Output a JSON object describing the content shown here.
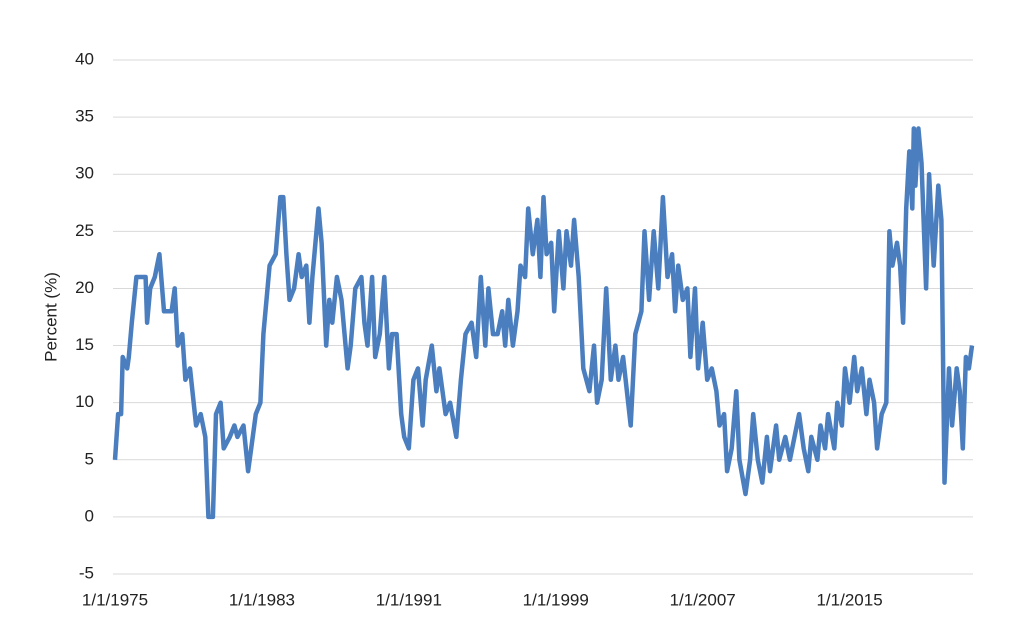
{
  "chart_data": {
    "type": "line",
    "y_label": "Percent (%)",
    "ylim": [
      -5,
      40
    ],
    "yticks": [
      -5,
      0,
      5,
      10,
      15,
      20,
      25,
      30,
      35,
      40
    ],
    "grid": true,
    "xlim": [
      "1/1/1975",
      "9/1/2021"
    ],
    "xticks": [
      "1/1/1975",
      "1/1/1983",
      "1/1/1991",
      "1/1/1999",
      "1/1/2007",
      "1/1/2015"
    ],
    "x": [
      "1/1/1975",
      "3/1/1975",
      "5/1/1975",
      "6/1/1975",
      "9/1/1975",
      "10/1/1975",
      "12/1/1975",
      "3/1/1976",
      "9/1/1976",
      "10/1/1976",
      "12/1/1976",
      "3/1/1977",
      "6/1/1977",
      "9/1/1977",
      "2/1/1978",
      "4/1/1978",
      "6/1/1978",
      "9/1/1978",
      "11/1/1978",
      "2/1/1979",
      "6/1/1979",
      "9/1/1979",
      "12/1/1979",
      "2/1/1980",
      "5/1/1980",
      "7/1/1980",
      "10/1/1980",
      "12/1/1980",
      "4/1/1981",
      "7/1/1981",
      "9/1/1981",
      "1/1/1982",
      "4/1/1982",
      "6/1/1982",
      "9/1/1982",
      "12/1/1982",
      "2/1/1983",
      "6/1/1983",
      "10/1/1983",
      "1/1/1984",
      "3/1/1984",
      "5/1/1984",
      "7/1/1984",
      "10/1/1984",
      "1/1/1985",
      "3/1/1985",
      "6/1/1985",
      "8/1/1985",
      "10/1/1985",
      "2/1/1986",
      "4/1/1986",
      "7/1/1986",
      "9/1/1986",
      "11/1/1986",
      "2/1/1987",
      "5/1/1987",
      "9/1/1987",
      "11/1/1987",
      "2/1/1988",
      "6/1/1988",
      "8/1/1988",
      "10/1/1988",
      "1/1/1989",
      "3/1/1989",
      "6/1/1989",
      "9/1/1989",
      "12/1/1989",
      "2/1/1990",
      "5/1/1990",
      "8/1/1990",
      "10/1/1990",
      "1/1/1991",
      "4/1/1991",
      "7/1/1991",
      "10/1/1991",
      "12/1/1991",
      "4/1/1992",
      "7/1/1992",
      "9/1/1992",
      "1/1/1993",
      "4/1/1993",
      "8/1/1993",
      "11/1/1993",
      "2/1/1994",
      "6/1/1994",
      "9/1/1994",
      "12/1/1994",
      "3/1/1995",
      "5/1/1995",
      "8/1/1995",
      "11/1/1995",
      "2/1/1996",
      "4/1/1996",
      "6/1/1996",
      "9/1/1996",
      "12/1/1996",
      "2/1/1997",
      "5/1/1997",
      "7/1/1997",
      "10/1/1997",
      "1/1/1998",
      "3/1/1998",
      "5/1/1998",
      "7/1/1998",
      "10/1/1998",
      "12/1/1998",
      "3/1/1999",
      "6/1/1999",
      "8/1/1999",
      "11/1/1999",
      "1/1/2000",
      "4/1/2000",
      "7/1/2000",
      "11/1/2000",
      "2/1/2001",
      "4/1/2001",
      "7/1/2001",
      "10/1/2001",
      "1/1/2002",
      "4/1/2002",
      "6/1/2002",
      "9/1/2002",
      "2/1/2003",
      "5/1/2003",
      "9/1/2003",
      "11/1/2003",
      "2/1/2004",
      "5/1/2004",
      "8/1/2004",
      "11/1/2004",
      "2/1/2005",
      "5/1/2005",
      "7/1/2005",
      "9/1/2005",
      "12/1/2005",
      "3/1/2006",
      "5/1/2006",
      "8/1/2006",
      "10/1/2006",
      "1/1/2007",
      "4/1/2007",
      "7/1/2007",
      "10/1/2007",
      "12/1/2007",
      "3/1/2008",
      "5/1/2008",
      "8/1/2008",
      "11/1/2008",
      "1/1/2009",
      "5/1/2009",
      "8/1/2009",
      "10/1/2009",
      "1/1/2010",
      "4/1/2010",
      "7/1/2010",
      "9/1/2010",
      "1/1/2011",
      "3/1/2011",
      "7/1/2011",
      "10/1/2011",
      "1/1/2012",
      "4/1/2012",
      "7/1/2012",
      "10/1/2012",
      "12/1/2012",
      "4/1/2013",
      "6/1/2013",
      "9/1/2013",
      "11/1/2013",
      "3/1/2014",
      "5/1/2014",
      "8/1/2014",
      "10/1/2014",
      "1/1/2015",
      "4/1/2015",
      "6/1/2015",
      "9/1/2015",
      "12/1/2015",
      "2/1/2016",
      "5/1/2016",
      "7/1/2016",
      "10/1/2016",
      "1/1/2017",
      "3/1/2017",
      "5/1/2017",
      "8/1/2017",
      "10/1/2017",
      "12/1/2017",
      "2/1/2018",
      "4/1/2018",
      "6/1/2018",
      "7/1/2018",
      "8/1/2018",
      "10/1/2018",
      "12/1/2018",
      "3/1/2019",
      "5/1/2019",
      "8/1/2019",
      "11/1/2019",
      "1/1/2020",
      "3/1/2020",
      "6/1/2020",
      "8/1/2020",
      "11/1/2020",
      "1/1/2021",
      "3/1/2021",
      "5/1/2021",
      "7/1/2021",
      "9/1/2021"
    ],
    "series": [
      {
        "color": "#4a7ebf",
        "values": [
          5,
          9,
          9,
          14,
          13,
          14,
          17,
          21,
          21,
          17,
          20,
          21,
          23,
          18,
          18,
          20,
          15,
          16,
          12,
          13,
          8,
          9,
          7,
          0,
          0,
          9,
          10,
          6,
          7,
          8,
          7,
          8,
          4,
          6,
          9,
          10,
          16,
          22,
          23,
          28,
          28,
          23,
          19,
          20,
          23,
          21,
          22,
          17,
          21,
          27,
          24,
          15,
          19,
          17,
          21,
          19,
          13,
          15,
          20,
          21,
          17,
          15,
          21,
          14,
          16,
          21,
          13,
          16,
          16,
          9,
          7,
          6,
          12,
          13,
          8,
          12,
          15,
          11,
          13,
          9,
          10,
          7,
          12,
          16,
          17,
          14,
          21,
          15,
          20,
          16,
          16,
          18,
          15,
          19,
          15,
          18,
          22,
          21,
          27,
          23,
          26,
          21,
          28,
          23,
          24,
          18,
          25,
          20,
          25,
          22,
          26,
          21,
          13,
          11,
          15,
          10,
          12,
          20,
          12,
          15,
          12,
          14,
          8,
          16,
          18,
          25,
          19,
          25,
          20,
          28,
          21,
          23,
          18,
          22,
          19,
          20,
          14,
          20,
          13,
          17,
          12,
          13,
          11,
          8,
          9,
          4,
          6,
          11,
          5,
          2,
          5,
          9,
          5,
          3,
          7,
          4,
          8,
          5,
          7,
          5,
          7,
          9,
          6,
          4,
          7,
          5,
          8,
          6,
          9,
          6,
          10,
          8,
          13,
          10,
          14,
          11,
          13,
          9,
          12,
          10,
          6,
          9,
          10,
          25,
          22,
          24,
          22,
          17,
          27,
          32,
          27,
          34,
          29,
          34,
          31,
          20,
          30,
          22,
          29,
          26,
          3,
          13,
          8,
          13,
          11,
          6,
          14,
          13,
          15
        ]
      }
    ]
  }
}
